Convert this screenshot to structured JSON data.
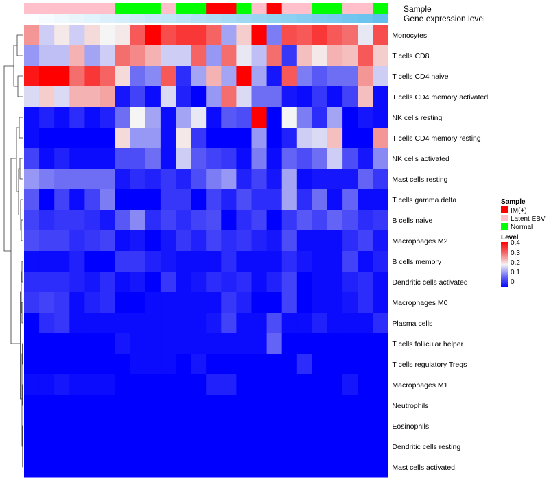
{
  "chart_data": {
    "type": "heatmap",
    "annotation_labels": [
      "Sample",
      "Gene expression level"
    ],
    "rows": [
      "Monocytes",
      "T cells CD8",
      "T cells CD4 naive",
      "T cells CD4 memory activated",
      "NK cells resting",
      "T cells CD4 memory resting",
      "NK cells activated",
      "Mast cells resting",
      "T cells gamma delta",
      "B cells naive",
      "Macrophages M2",
      "B cells memory",
      "Dendritic cells activated",
      "Macrophages M0",
      "Plasma cells",
      "T cells follicular helper",
      "T cells regulatory  Tregs",
      "Macrophages M1",
      "Neutrophils",
      "Eosinophils",
      "Dendritic cells resting",
      "Mast cells activated"
    ],
    "sample_groups": [
      "Latent EBV",
      "Latent EBV",
      "Latent EBV",
      "Latent EBV",
      "Latent EBV",
      "Latent EBV",
      "Normal",
      "Normal",
      "Normal",
      "Latent EBV",
      "Normal",
      "Normal",
      "IM(+)",
      "IM(+)",
      "Normal",
      "Latent EBV",
      "IM(+)",
      "Latent EBV",
      "Latent EBV",
      "Normal",
      "Normal",
      "Latent EBV",
      "Latent EBV",
      "Normal"
    ],
    "gene_expression": [
      0.02,
      0.06,
      0.1,
      0.14,
      0.18,
      0.22,
      0.26,
      0.3,
      0.34,
      0.38,
      0.42,
      0.46,
      0.5,
      0.54,
      0.58,
      0.62,
      0.66,
      0.7,
      0.74,
      0.78,
      0.82,
      0.86,
      0.9,
      0.96
    ],
    "values": [
      [
        0.27,
        0.17,
        0.21,
        0.17,
        0.22,
        0.2,
        0.21,
        0.32,
        0.4,
        0.33,
        0.35,
        0.35,
        0.31,
        0.14,
        0.23,
        0.4,
        0.11,
        0.33,
        0.32,
        0.35,
        0.32,
        0.3,
        0.19,
        0.33
      ],
      [
        0.13,
        0.16,
        0.16,
        0.25,
        0.14,
        0.17,
        0.3,
        0.28,
        0.25,
        0.17,
        0.17,
        0.31,
        0.13,
        0.3,
        0.19,
        0.16,
        0.3,
        0.05,
        0.24,
        0.21,
        0.25,
        0.24,
        0.32,
        0.23
      ],
      [
        0.38,
        0.4,
        0.4,
        0.3,
        0.35,
        0.31,
        0.22,
        0.1,
        0.12,
        0.32,
        0.04,
        0.14,
        0.25,
        0.14,
        0.4,
        0.14,
        0.02,
        0.32,
        0.11,
        0.08,
        0.1,
        0.1,
        0.27,
        0.17
      ],
      [
        0.18,
        0.23,
        0.18,
        0.25,
        0.25,
        0.26,
        0.02,
        0.06,
        0.01,
        0.18,
        0.03,
        0.0,
        0.13,
        0.3,
        0.18,
        0.1,
        0.1,
        0.02,
        0.01,
        0.05,
        0.01,
        0.06,
        0.24,
        0.01
      ],
      [
        0.01,
        0.03,
        0.01,
        0.04,
        0.01,
        0.03,
        0.1,
        0.2,
        0.14,
        0.01,
        0.14,
        0.19,
        0.01,
        0.08,
        0.07,
        0.4,
        0.0,
        0.2,
        0.11,
        0.04,
        0.14,
        0.0,
        0.02,
        0.01
      ],
      [
        0.01,
        0.0,
        0.0,
        0.0,
        0.0,
        0.0,
        0.22,
        0.13,
        0.13,
        0.01,
        0.21,
        0.05,
        0.0,
        0.0,
        0.0,
        0.13,
        0.0,
        0.03,
        0.17,
        0.18,
        0.24,
        0.0,
        0.0,
        0.27
      ],
      [
        0.06,
        0.01,
        0.03,
        0.01,
        0.01,
        0.01,
        0.07,
        0.07,
        0.1,
        0.01,
        0.17,
        0.08,
        0.06,
        0.05,
        0.01,
        0.11,
        0.01,
        0.09,
        0.07,
        0.1,
        0.17,
        0.07,
        0.02,
        0.12
      ],
      [
        0.13,
        0.11,
        0.1,
        0.1,
        0.1,
        0.1,
        0.02,
        0.04,
        0.03,
        0.05,
        0.03,
        0.07,
        0.11,
        0.13,
        0.03,
        0.06,
        0.02,
        0.14,
        0.01,
        0.02,
        0.02,
        0.02,
        0.09,
        0.05
      ],
      [
        0.08,
        0.0,
        0.06,
        0.01,
        0.06,
        0.11,
        0.0,
        0.0,
        0.0,
        0.05,
        0.05,
        0.0,
        0.06,
        0.03,
        0.07,
        0.04,
        0.04,
        0.14,
        0.04,
        0.1,
        0.01,
        0.09,
        0.01,
        0.01
      ],
      [
        0.06,
        0.04,
        0.05,
        0.05,
        0.04,
        0.02,
        0.08,
        0.12,
        0.04,
        0.06,
        0.04,
        0.06,
        0.07,
        0.0,
        0.04,
        0.06,
        0.0,
        0.05,
        0.08,
        0.06,
        0.09,
        0.07,
        0.04,
        0.05
      ],
      [
        0.07,
        0.06,
        0.06,
        0.04,
        0.05,
        0.06,
        0.01,
        0.02,
        0.0,
        0.02,
        0.05,
        0.03,
        0.06,
        0.04,
        0.05,
        0.03,
        0.02,
        0.07,
        0.01,
        0.01,
        0.01,
        0.04,
        0.06,
        0.02
      ],
      [
        0.01,
        0.01,
        0.01,
        0.03,
        0.0,
        0.0,
        0.05,
        0.05,
        0.03,
        0.02,
        0.01,
        0.01,
        0.01,
        0.04,
        0.01,
        0.01,
        0.01,
        0.04,
        0.02,
        0.01,
        0.01,
        0.06,
        0.01,
        0.03
      ],
      [
        0.04,
        0.04,
        0.04,
        0.03,
        0.02,
        0.04,
        0.01,
        0.02,
        0.0,
        0.05,
        0.01,
        0.02,
        0.04,
        0.03,
        0.04,
        0.01,
        0.03,
        0.06,
        0.0,
        0.01,
        0.01,
        0.03,
        0.04,
        0.01
      ],
      [
        0.05,
        0.06,
        0.05,
        0.01,
        0.03,
        0.04,
        0.0,
        0.0,
        0.01,
        0.01,
        0.01,
        0.01,
        0.01,
        0.05,
        0.03,
        0.0,
        0.0,
        0.06,
        0.0,
        0.01,
        0.01,
        0.02,
        0.04,
        0.01
      ],
      [
        0.0,
        0.04,
        0.05,
        0.01,
        0.01,
        0.01,
        0.01,
        0.01,
        0.01,
        0.01,
        0.01,
        0.01,
        0.02,
        0.06,
        0.01,
        0.01,
        0.07,
        0.01,
        0.01,
        0.03,
        0.01,
        0.01,
        0.01,
        0.04
      ],
      [
        0.0,
        0.0,
        0.0,
        0.0,
        0.0,
        0.0,
        0.02,
        0.01,
        0.01,
        0.01,
        0.01,
        0.01,
        0.01,
        0.01,
        0.01,
        0.01,
        0.09,
        0.0,
        0.0,
        0.0,
        0.0,
        0.0,
        0.0,
        0.0
      ],
      [
        0.0,
        0.0,
        0.0,
        0.0,
        0.0,
        0.0,
        0.0,
        0.01,
        0.01,
        0.01,
        0.0,
        0.02,
        0.0,
        0.0,
        0.0,
        0.0,
        0.0,
        0.0,
        0.04,
        0.0,
        0.0,
        0.0,
        0.0,
        0.0
      ],
      [
        0.01,
        0.01,
        0.02,
        0.01,
        0.01,
        0.01,
        0.0,
        0.0,
        0.0,
        0.0,
        0.0,
        0.0,
        0.03,
        0.03,
        0.0,
        0.0,
        0.0,
        0.0,
        0.0,
        0.0,
        0.0,
        0.02,
        0.0,
        0.0
      ],
      [
        0.0,
        0.0,
        0.0,
        0.0,
        0.0,
        0.0,
        0.0,
        0.0,
        0.0,
        0.0,
        0.0,
        0.0,
        0.0,
        0.0,
        0.0,
        0.0,
        0.0,
        0.0,
        0.0,
        0.0,
        0.0,
        0.0,
        0.0,
        0.0
      ],
      [
        0.0,
        0.0,
        0.0,
        0.0,
        0.0,
        0.0,
        0.0,
        0.0,
        0.0,
        0.0,
        0.0,
        0.0,
        0.0,
        0.0,
        0.0,
        0.0,
        0.0,
        0.0,
        0.0,
        0.0,
        0.0,
        0.0,
        0.0,
        0.0
      ],
      [
        0.0,
        0.0,
        0.0,
        0.0,
        0.0,
        0.0,
        0.0,
        0.0,
        0.0,
        0.0,
        0.0,
        0.0,
        0.0,
        0.0,
        0.0,
        0.0,
        0.0,
        0.0,
        0.0,
        0.0,
        0.0,
        0.0,
        0.0,
        0.0
      ],
      [
        0.0,
        0.0,
        0.0,
        0.0,
        0.0,
        0.0,
        0.0,
        0.0,
        0.0,
        0.0,
        0.0,
        0.0,
        0.0,
        0.0,
        0.0,
        0.0,
        0.0,
        0.0,
        0.0,
        0.0,
        0.0,
        0.0,
        0.0,
        0.0
      ]
    ],
    "color_scale": {
      "domain": [
        0,
        0.1,
        0.2,
        0.3,
        0.4
      ],
      "colors": [
        "#0000ff",
        "#6e6ef5",
        "#f5f5f5",
        "#f56e6e",
        "#ff0000"
      ]
    },
    "gene_expression_colors": [
      "#ffffff",
      "#5bbcec"
    ],
    "sample_legend": {
      "title": "Sample",
      "entries": [
        {
          "name": "IM(+)",
          "color": "#ff0000"
        },
        {
          "name": "Latent EBV",
          "color": "#ffc0cb"
        },
        {
          "name": "Normal",
          "color": "#00ff00"
        }
      ]
    },
    "level_legend": {
      "title": "Level",
      "ticks": [
        "0.4",
        "0.3",
        "0.2",
        "0.1",
        "0"
      ]
    },
    "dendrogram": true,
    "legend_placement": "right"
  }
}
